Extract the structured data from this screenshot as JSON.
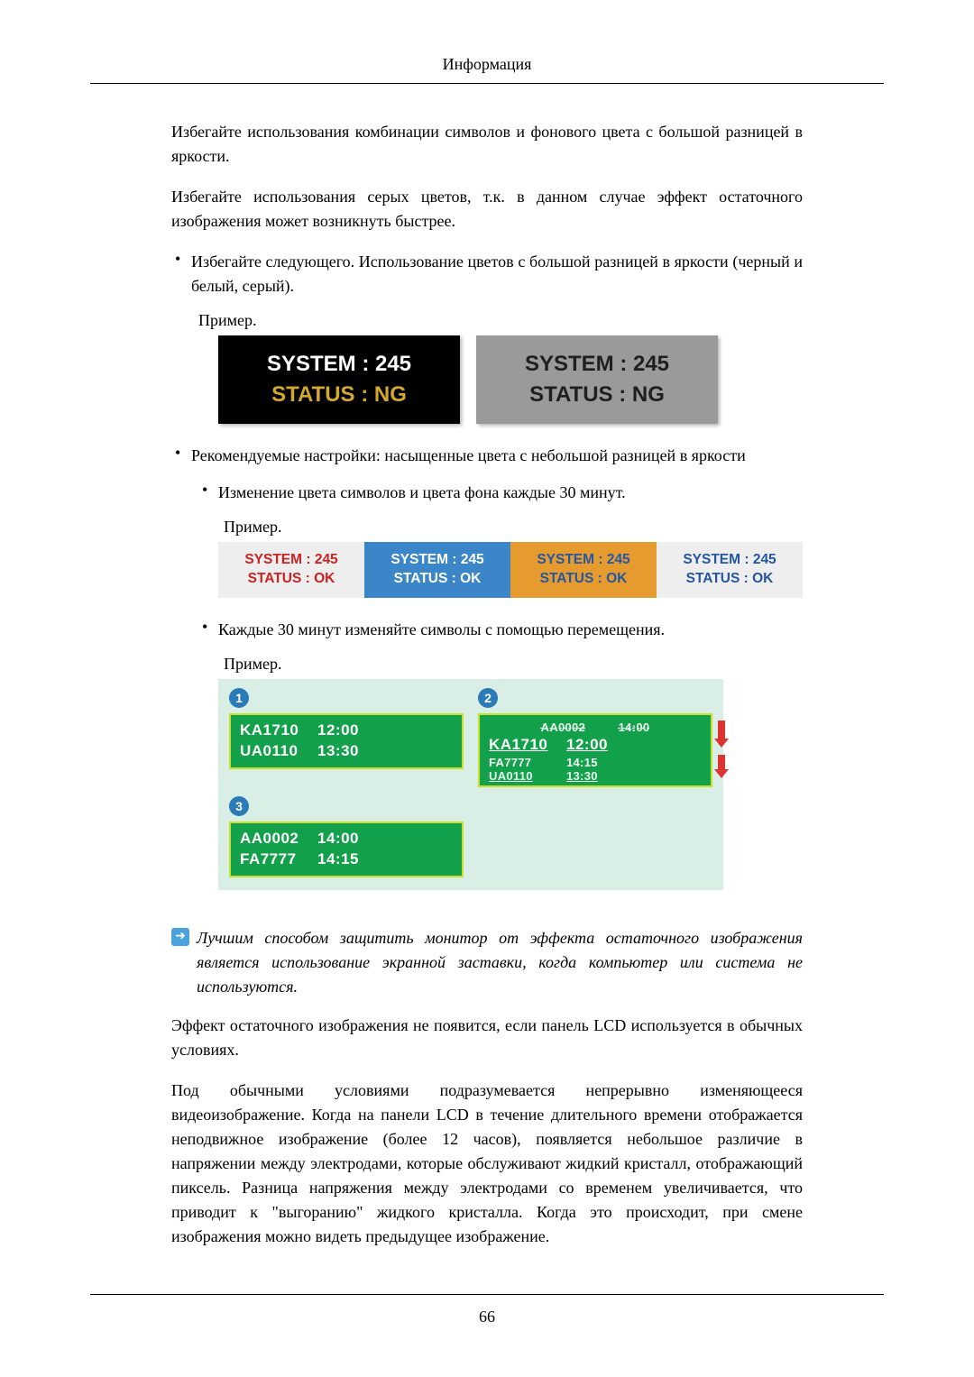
{
  "header": {
    "title": "Информация"
  },
  "footer": {
    "page": "66"
  },
  "body": {
    "p1": "Избегайте использования комбинации символов и фонового цвета с большой разницей в яркости.",
    "p2": "Избегайте использования серых цветов, т.к. в данном случае эффект остаточного изображения может возникнуть быстрее.",
    "b1": "Избегайте следующего. Использование цветов с большой разницей в яркости (черный и белый, серый).",
    "ex1_label": "Пример.",
    "b2": "Рекомендуемые настройки: насыщенные цвета с небольшой разницей в яркости",
    "b2a": "Изменение цвета символов и цвета фона каждые 30 минут.",
    "ex2_label": "Пример.",
    "b2b": "Каждые 30 минут изменяйте символы с помощью перемещения.",
    "ex3_label": "Пример.",
    "note": "Лучшим способом защитить монитор от эффекта остаточного изображения является использование экранной заставки, когда компьютер или система не используются.",
    "p3": "Эффект остаточного изображения не появится, если панель LCD используется в обычных условиях.",
    "p4": "Под обычными условиями подразумевается непрерывно изменяющееся видеоизображение. Когда на панели LCD в течение длительного времени отображается неподвижное изображение (более 12 часов), появляется небольшое различие в напряжении между электродами, которые обслуживают жидкий кристалл, отображающий пиксель. Разница напряжения между электродами со временем увеличивается, что приводит к \"выгоранию\" жидкого кристалла. Когда это происходит, при смене изображения можно видеть предыдущее изображение."
  },
  "ex1": {
    "boxes": [
      {
        "bg": "#000000",
        "l1": "SYSTEM : 245",
        "c1": "#ffffff",
        "l2": "STATUS : NG",
        "c2": "#d4a82a"
      },
      {
        "bg": "#9a9a9a",
        "l1": "SYSTEM : 245",
        "c1": "#1f1f1f",
        "l2": "STATUS : NG",
        "c2": "#1f1f1f"
      }
    ]
  },
  "ex2": {
    "boxes": [
      {
        "bg": "#eeeeee",
        "c1": "#c22",
        "c2": "#c22",
        "l1": "SYSTEM : 245",
        "l2": "STATUS : OK"
      },
      {
        "bg": "#3a86c8",
        "c1": "#ffffff",
        "c2": "#ffffff",
        "l1": "SYSTEM : 245",
        "l2": "STATUS : OK"
      },
      {
        "bg": "#e69b2e",
        "c1": "#2456a6",
        "c2": "#2456a6",
        "l1": "SYSTEM : 245",
        "l2": "STATUS : OK"
      },
      {
        "bg": "#eeeeee",
        "c1": "#2456a6",
        "c2": "#2456a6",
        "l1": "SYSTEM : 245",
        "l2": "STATUS : OK"
      }
    ]
  },
  "ex3": {
    "background": "#d9eee4",
    "panel_bg": "#13a04a",
    "panel_border": "#c9df2c",
    "text_color": "#ffffff",
    "badge_bg": "#2b7bb8",
    "arrow_color": "#d33",
    "panels": {
      "p1": {
        "badge": "1",
        "rows": [
          {
            "code": "KA1710",
            "time": "12:00"
          },
          {
            "code": "UA0110",
            "time": "13:30"
          }
        ]
      },
      "p2": {
        "badge": "2",
        "rows_top": [
          {
            "code": "AA0002",
            "time": "14:00"
          }
        ],
        "rows_main": [
          {
            "code": "KA1710",
            "time": "12:00"
          },
          {
            "code": "FA7777",
            "time": "14:15"
          }
        ],
        "rows_bottom": [
          {
            "code": "UA0110",
            "time": "13:30"
          }
        ]
      },
      "p3": {
        "badge": "3",
        "rows": [
          {
            "code": "AA0002",
            "time": "14:00"
          },
          {
            "code": "FA7777",
            "time": "14:15"
          }
        ]
      }
    }
  }
}
